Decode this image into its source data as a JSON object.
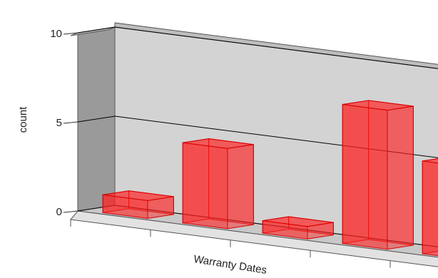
{
  "chart_data": {
    "type": "bar",
    "title": "",
    "xlabel": "Warranty Dates",
    "ylabel": "count",
    "ylim": [
      0,
      10
    ],
    "yticks": [
      0,
      5,
      10
    ],
    "categories": [
      "",
      "",
      "",
      "",
      ""
    ],
    "values": [
      1,
      4.5,
      0.7,
      7.8,
      5.2
    ],
    "colors": {
      "bar": "#ff2020",
      "wall": "#d3d3d3",
      "floor": "#c8c8c8",
      "left_wall": "#9a9a9a",
      "grid": "#000000"
    },
    "view": "3d",
    "grid": true
  }
}
